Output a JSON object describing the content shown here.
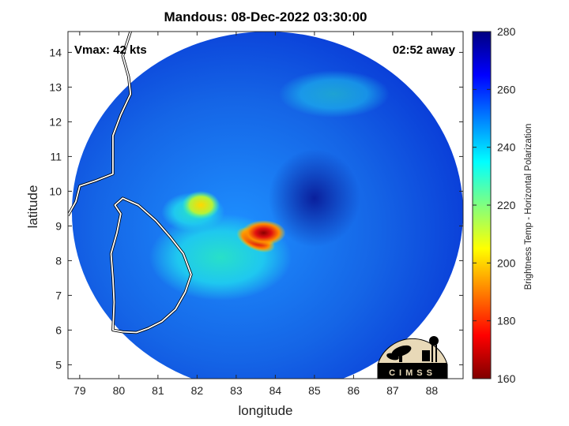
{
  "chart_data": {
    "type": "heatmap",
    "title": "Mandous: 08-Dec-2022 03:30:00",
    "xlabel": "longitude",
    "ylabel": "latitude",
    "xlim": [
      78.7,
      88.8
    ],
    "ylim": [
      4.6,
      14.6
    ],
    "xticks": [
      79,
      80,
      81,
      82,
      83,
      84,
      85,
      86,
      87,
      88
    ],
    "yticks": [
      5,
      6,
      7,
      8,
      9,
      10,
      11,
      12,
      13,
      14
    ],
    "annotations": {
      "vmax": "Vmax: 42 kts",
      "away": "02:52 away"
    },
    "colorbar": {
      "label": "Brightness Temp - Horizontal Polarization",
      "range": [
        160,
        280
      ],
      "ticks": [
        160,
        180,
        200,
        220,
        240,
        260,
        280
      ],
      "colormap": "jet"
    },
    "swath": {
      "center_lon": 83.8,
      "center_lat": 9.4,
      "radius_lon": 5.0,
      "radius_lat": 5.2
    },
    "features": [
      {
        "name": "eye",
        "lon": 85.0,
        "lat": 9.8,
        "temp": 268
      },
      {
        "name": "core-min",
        "lon": 83.5,
        "lat": 8.6,
        "temp": 165
      },
      {
        "name": "convection-north",
        "lon": 82.1,
        "lat": 9.6,
        "temp": 200
      },
      {
        "name": "rainband-east",
        "lon": 83.7,
        "lat": 8.8,
        "temp": 195
      }
    ],
    "logo_text": "CIMSS"
  }
}
